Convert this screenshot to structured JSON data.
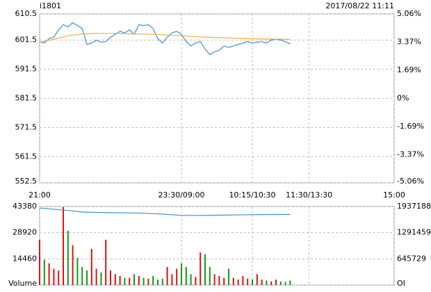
{
  "header": {
    "symbol": "i1801",
    "datetime": "2017/08/22 11:11"
  },
  "chart_data": [
    {
      "type": "line",
      "xlim": [
        0,
        375
      ],
      "xticks": [
        {
          "value": 0,
          "label": "21:00"
        },
        {
          "value": 150,
          "label": "23:30/09:00"
        },
        {
          "value": 225,
          "label": "10:15/10:30"
        },
        {
          "value": 285,
          "label": "11:30/13:30"
        },
        {
          "value": 375,
          "label": "15:00"
        }
      ],
      "ylim": [
        552.5,
        610.5
      ],
      "yticks": [
        610.5,
        601.5,
        591.5,
        581.5,
        571.5,
        561.5,
        552.5
      ],
      "ytick_colors": [
        "#cc0000",
        "#cc0000",
        "#cc0000",
        "#000000",
        "#008800",
        "#008800",
        "#008800"
      ],
      "y2lim": [
        -5.06,
        5.06
      ],
      "y2ticks": [
        {
          "value": 5.06,
          "label": "5.06%"
        },
        {
          "value": 3.37,
          "label": "3.37%"
        },
        {
          "value": 1.69,
          "label": "1.69%"
        },
        {
          "value": 0,
          "label": "0%"
        },
        {
          "value": -1.69,
          "label": "-1.69%"
        },
        {
          "value": -3.37,
          "label": "-3.37%"
        },
        {
          "value": -5.06,
          "label": "-5.06%"
        }
      ],
      "y2tick_colors": [
        "#cc0000",
        "#cc0000",
        "#cc0000",
        "#000000",
        "#008800",
        "#008800",
        "#008800"
      ],
      "grid": true,
      "series": [
        {
          "color": "#3b8fd4",
          "x": [
            0,
            5,
            10,
            15,
            20,
            25,
            30,
            35,
            40,
            45,
            50,
            55,
            60,
            65,
            70,
            75,
            80,
            85,
            90,
            95,
            100,
            105,
            110,
            115,
            120,
            125,
            130,
            135,
            140,
            145,
            150,
            155,
            160,
            165,
            170,
            175,
            180,
            185,
            190,
            195,
            200,
            205,
            210,
            215,
            220,
            225,
            230,
            235,
            240,
            245,
            250,
            255,
            260,
            265
          ],
          "values": [
            601.0,
            600.5,
            602.0,
            602.5,
            605.0,
            606.8,
            606.0,
            607.5,
            606.5,
            605.5,
            600.0,
            600.5,
            601.5,
            600.8,
            601.0,
            602.5,
            603.5,
            604.5,
            604.0,
            605.0,
            603.5,
            606.8,
            606.5,
            606.8,
            605.5,
            602.0,
            600.5,
            602.5,
            604.0,
            604.5,
            603.5,
            601.0,
            599.5,
            600.5,
            601.0,
            598.5,
            596.5,
            597.5,
            598.0,
            599.5,
            599.0,
            599.5,
            600.0,
            600.5,
            601.0,
            600.5,
            600.8,
            601.0,
            600.5,
            601.5,
            601.8,
            601.5,
            601.0,
            600.2
          ]
        },
        {
          "color": "#e8b040",
          "x": [
            0,
            15,
            30,
            45,
            60,
            75,
            90,
            105,
            120,
            135,
            150,
            165,
            180,
            195,
            210,
            225,
            240,
            255,
            265
          ],
          "values": [
            600.8,
            601.8,
            603.0,
            603.6,
            603.8,
            603.8,
            603.7,
            603.6,
            603.5,
            603.3,
            603.0,
            602.7,
            602.5,
            602.3,
            602.1,
            602.0,
            601.9,
            601.8,
            601.8
          ]
        }
      ]
    },
    {
      "type": "bar",
      "xlim": [
        0,
        375
      ],
      "xticks": [
        0,
        150,
        225,
        285,
        375
      ],
      "ylim": [
        0,
        43380
      ],
      "yticks": [
        43380,
        28920,
        14460,
        {
          "value": 0,
          "label": "Volume"
        }
      ],
      "y2lim": [
        0,
        1937188
      ],
      "y2ticks": [
        1937188,
        1291459,
        645729,
        {
          "value": 0,
          "label": "OI"
        }
      ],
      "up_color": "#dd1111",
      "down_color": "#119911",
      "grid": true,
      "series": [
        {
          "x": [
            0,
            5,
            10,
            15,
            20,
            25,
            30,
            35,
            40,
            45,
            50,
            55,
            60,
            65,
            70,
            75,
            80,
            85,
            90,
            95,
            100,
            105,
            110,
            115,
            120,
            125,
            130,
            135,
            140,
            145,
            150,
            155,
            160,
            165,
            170,
            175,
            180,
            185,
            190,
            195,
            200,
            205,
            210,
            215,
            220,
            225,
            230,
            235,
            240,
            245,
            250,
            255,
            260,
            265
          ],
          "values": [
            25000,
            14000,
            12000,
            9000,
            8000,
            43000,
            30000,
            22000,
            15000,
            10000,
            8000,
            20000,
            9000,
            7000,
            25000,
            8000,
            6000,
            5000,
            4000,
            4000,
            6000,
            5000,
            4000,
            3500,
            5000,
            3000,
            3500,
            10000,
            6000,
            9000,
            12000,
            10000,
            6000,
            4500,
            18000,
            17000,
            10000,
            6000,
            5000,
            4000,
            9000,
            4000,
            3000,
            5000,
            3500,
            3000,
            6000,
            3000,
            2500,
            2000,
            3000,
            2000,
            1800,
            2500
          ]
        },
        {
          "axis": "y2",
          "color": "#3b8fd4",
          "x": [
            0,
            15,
            30,
            45,
            60,
            75,
            90,
            105,
            120,
            135,
            150,
            165,
            180,
            195,
            210,
            225,
            240,
            255,
            265
          ],
          "values": [
            1900000,
            1870000,
            1840000,
            1800000,
            1790000,
            1785000,
            1780000,
            1775000,
            1760000,
            1740000,
            1720000,
            1715000,
            1718000,
            1725000,
            1730000,
            1735000,
            1738000,
            1740000,
            1740000
          ]
        }
      ]
    }
  ]
}
